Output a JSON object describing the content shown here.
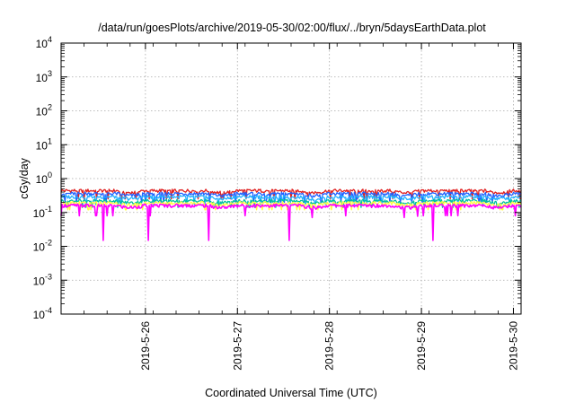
{
  "chart_data": {
    "type": "line",
    "title": "/data/run/goesPlots/archive/2019-05-30/02:00/flux/../bryn/5daysEarthData.plot",
    "xlabel": "Coordinated Universal Time (UTC)",
    "ylabel": "cGy/day",
    "yscale": "log",
    "ylim": [
      0.0001,
      10000
    ],
    "y_ticks": [
      {
        "value": 0.0001,
        "base": "10",
        "exp": "-4"
      },
      {
        "value": 0.001,
        "base": "10",
        "exp": "-3"
      },
      {
        "value": 0.01,
        "base": "10",
        "exp": "-2"
      },
      {
        "value": 0.1,
        "base": "10",
        "exp": "-1"
      },
      {
        "value": 1,
        "base": "10",
        "exp": "0"
      },
      {
        "value": 10,
        "base": "10",
        "exp": "1"
      },
      {
        "value": 100,
        "base": "10",
        "exp": "2"
      },
      {
        "value": 1000,
        "base": "10",
        "exp": "3"
      },
      {
        "value": 10000,
        "base": "10",
        "exp": "4"
      }
    ],
    "xlim": [
      "2019-05-25T02:00",
      "2019-05-30T02:00"
    ],
    "x_ticks": [
      "2019-5-26",
      "2019-5-27",
      "2019-5-28",
      "2019-5-29",
      "2019-5-30"
    ],
    "grid": true,
    "legend": "none",
    "series_colors": [
      "#e02020",
      "#2060ff",
      "#20b0ff",
      "#00c0a0",
      "#ffff40",
      "#ff00ff"
    ],
    "series": [
      {
        "color": "#e02020",
        "level": 0.44,
        "min": 0.25
      },
      {
        "color": "#2060ff",
        "level": 0.36,
        "min": 0.2
      },
      {
        "color": "#20b0ff",
        "level": 0.29,
        "min": 0.17
      },
      {
        "color": "#00c0a0",
        "level": 0.22,
        "min": 0.14
      },
      {
        "color": "#ffff40",
        "level": 0.19,
        "min": 0.12
      },
      {
        "color": "#ff00ff",
        "level": 0.16,
        "min": 0.015
      }
    ]
  }
}
